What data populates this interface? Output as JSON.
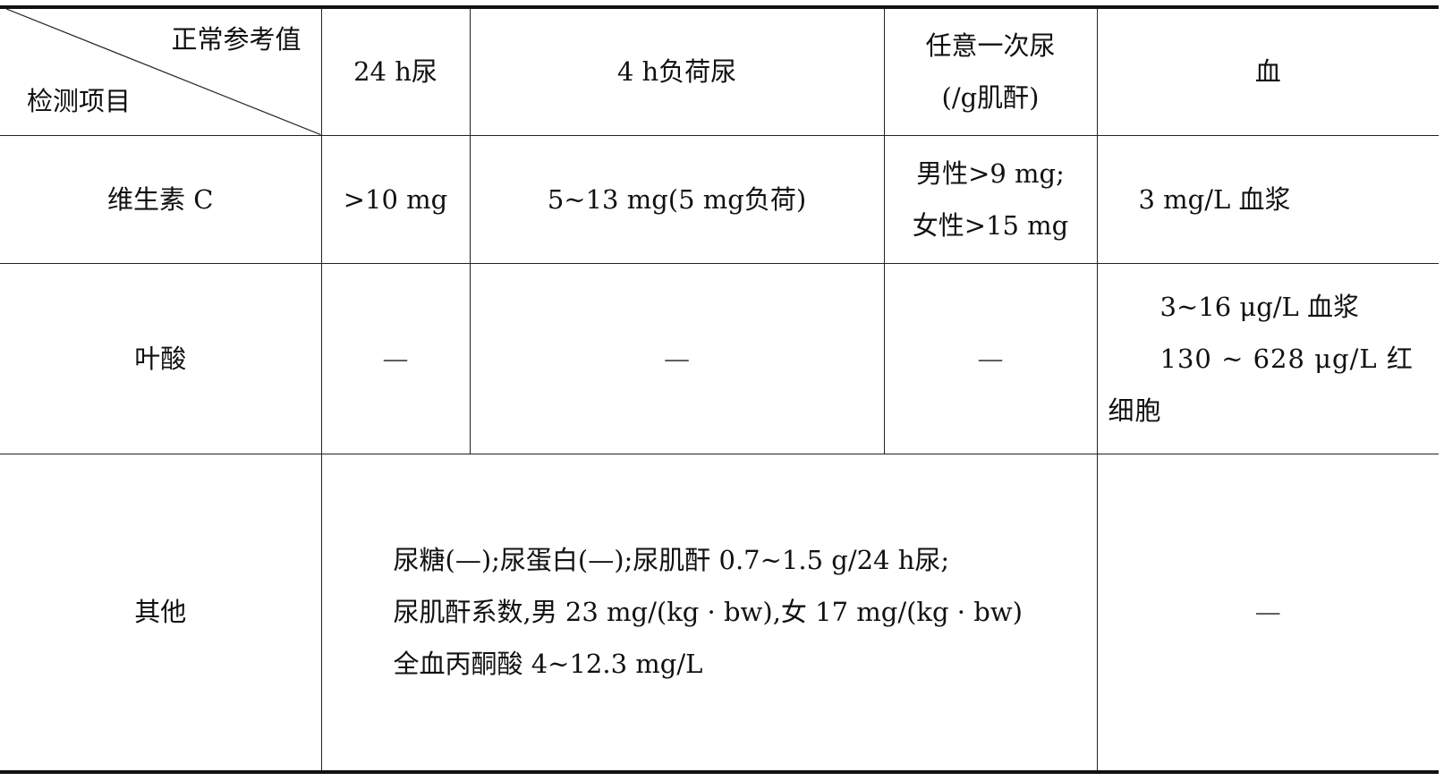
{
  "header": {
    "corner_top": "正常参考值",
    "corner_bottom": "检测项目",
    "columns": [
      "24 h尿",
      "4 h负荷尿",
      "任意一次尿",
      "(/g肌酐)",
      "血"
    ]
  },
  "rows": [
    {
      "item": "维生素 C",
      "urine_24h": ">10 mg",
      "urine_4h_load": "5~13 mg(5 mg负荷)",
      "random_urine": [
        "男性>9 mg;",
        "女性>15 mg"
      ],
      "blood": [
        "3 mg/L 血浆"
      ]
    },
    {
      "item": "叶酸",
      "urine_24h": "—",
      "urine_4h_load": "—",
      "random_urine": [
        "—"
      ],
      "blood": [
        "3~16 μg/L 血浆",
        "130 ~ 628 μg/L 红细胞"
      ]
    },
    {
      "item": "其他",
      "urine_merged": [
        "尿糖(—);尿蛋白(—);尿肌酐 0.7~1.5 g/24 h尿;",
        "尿肌酐系数,男 23 mg/(kg · bw),女 17 mg/(kg · bw)",
        "全血丙酮酸 4~12.3 mg/L"
      ],
      "blood": "—"
    }
  ]
}
